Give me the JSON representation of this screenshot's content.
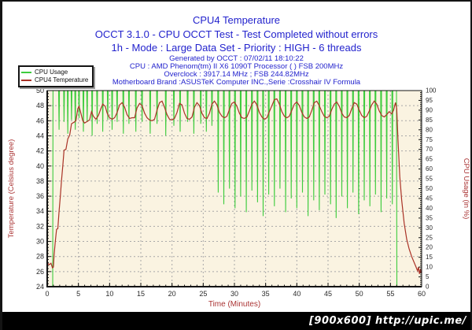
{
  "header": {
    "title_lines": [
      "CPU4 Temperature",
      "OCCT 3.1.0 - CPU OCCT Test - Test Completed without errors",
      "1h - Mode : Large Data Set - Priority : HIGH - 6 threads"
    ],
    "info_lines": [
      "Generated by OCCT : 07/02/11 18:10:22",
      "CPU : AMD Phenom(tm) II X6 1090T Processor (  ) FSB 200MHz",
      "Overclock : 3917.14 MHz ; FSB 244.82MHz",
      "Motherboard Brand :ASUSTeK Computer INC.,Serie :Crosshair IV Formula"
    ],
    "text_color": "#2323cd"
  },
  "watermark": {
    "text": "[900x600] http://upic.me/"
  },
  "chart_data": {
    "type": "line",
    "title": "CPU4 Temperature",
    "plot_bg": "#faf3e1",
    "grid": true,
    "grid_color": "#a8a8a8",
    "axis_label_color": "#aa3333",
    "tick_label_color": "#2a2a2a",
    "legend_position": "top-left",
    "x_axis": {
      "label": "Time (Minutes)",
      "lim": [
        0,
        60
      ],
      "ticks": [
        0,
        5,
        10,
        15,
        20,
        25,
        30,
        35,
        40,
        45,
        50,
        55,
        60
      ]
    },
    "y_left": {
      "label": "Temperature (Celsius degree)",
      "lim": [
        24,
        50
      ],
      "ticks": [
        24,
        26,
        28,
        30,
        32,
        34,
        36,
        38,
        40,
        42,
        44,
        46,
        48,
        50
      ]
    },
    "y_right": {
      "label": "CPU Usage (in %)",
      "lim": [
        0,
        100
      ],
      "ticks": [
        0,
        5,
        10,
        15,
        20,
        25,
        30,
        35,
        40,
        45,
        50,
        55,
        60,
        65,
        70,
        75,
        80,
        85,
        90,
        95,
        100
      ]
    },
    "series": [
      {
        "name": "CPU Usage",
        "axis": "right",
        "color": "#3ecc3e",
        "baseline": 100,
        "lead": [
          [
            0,
            0
          ],
          [
            0.88,
            0
          ],
          [
            0.93,
            100
          ]
        ],
        "dips": [
          [
            1.9,
            80
          ],
          [
            2.7,
            84
          ],
          [
            3.3,
            78
          ],
          [
            3.9,
            85
          ],
          [
            4.5,
            80
          ],
          [
            5.1,
            86
          ],
          [
            5.8,
            79
          ],
          [
            6.4,
            84
          ],
          [
            7.2,
            77
          ],
          [
            8.0,
            83
          ],
          [
            8.9,
            79
          ],
          [
            9.7,
            85
          ],
          [
            10.4,
            80
          ],
          [
            11.2,
            84
          ],
          [
            12.2,
            78
          ],
          [
            13.1,
            83
          ],
          [
            14.2,
            79
          ],
          [
            15.2,
            84
          ],
          [
            16.5,
            78
          ],
          [
            17.6,
            83
          ],
          [
            19.0,
            77
          ],
          [
            20.3,
            82
          ],
          [
            21.3,
            79
          ],
          [
            22.5,
            84
          ],
          [
            23.5,
            78
          ],
          [
            24.6,
            83
          ],
          [
            25.5,
            79
          ],
          [
            26.4,
            82
          ],
          [
            27.4,
            48
          ],
          [
            28.3,
            42
          ],
          [
            29.2,
            50
          ],
          [
            30.1,
            40
          ],
          [
            31.0,
            46
          ],
          [
            31.9,
            38
          ],
          [
            32.8,
            49
          ],
          [
            33.7,
            43
          ],
          [
            34.6,
            36
          ],
          [
            35.5,
            47
          ],
          [
            36.4,
            41
          ],
          [
            37.3,
            50
          ],
          [
            38.2,
            38
          ],
          [
            39.1,
            45
          ],
          [
            40.0,
            40
          ],
          [
            40.9,
            48
          ],
          [
            41.8,
            36
          ],
          [
            42.7,
            44
          ],
          [
            43.6,
            39
          ],
          [
            44.5,
            47
          ],
          [
            45.4,
            42
          ],
          [
            46.3,
            35
          ],
          [
            47.2,
            46
          ],
          [
            48.1,
            40
          ],
          [
            49.0,
            48
          ],
          [
            49.9,
            37
          ],
          [
            50.8,
            44
          ],
          [
            51.7,
            41
          ],
          [
            52.6,
            47
          ],
          [
            53.5,
            38
          ],
          [
            54.4,
            45
          ],
          [
            55.3,
            42
          ]
        ],
        "tail": [
          [
            55.97,
            100
          ],
          [
            56.03,
            0
          ],
          [
            60,
            0
          ]
        ]
      },
      {
        "name": "CPU4 Temperature",
        "axis": "left",
        "color": "#a93226",
        "points": [
          [
            0,
            27.2
          ],
          [
            0.3,
            26.9
          ],
          [
            0.6,
            27.1
          ],
          [
            0.85,
            26.5
          ],
          [
            1,
            26.6
          ],
          [
            1.1,
            28.1
          ],
          [
            1.3,
            30
          ],
          [
            1.5,
            31.6
          ],
          [
            1.7,
            31.7
          ],
          [
            1.9,
            34
          ],
          [
            2.1,
            36
          ],
          [
            2.3,
            38.1
          ],
          [
            2.5,
            40
          ],
          [
            2.7,
            42.1
          ],
          [
            3,
            42.2
          ],
          [
            3.3,
            43.6
          ],
          [
            3.6,
            44.1
          ],
          [
            3.9,
            45.6
          ],
          [
            4.3,
            45.8
          ],
          [
            4.6,
            46
          ],
          [
            4.9,
            47.6
          ],
          [
            5.1,
            47.9
          ],
          [
            5.4,
            47
          ],
          [
            5.7,
            46
          ],
          [
            6,
            45.7
          ],
          [
            6.4,
            45.9
          ],
          [
            6.8,
            46.1
          ],
          [
            7.1,
            47.2
          ],
          [
            7.4,
            46.6
          ],
          [
            7.8,
            46.2
          ],
          [
            8.2,
            46.7
          ],
          [
            8.6,
            47.6
          ],
          [
            8.9,
            48.2
          ],
          [
            9.3,
            47.9
          ],
          [
            9.6,
            47
          ],
          [
            10,
            46.4
          ],
          [
            10.4,
            46.2
          ],
          [
            10.8,
            46.4
          ],
          [
            11.2,
            47.1
          ],
          [
            11.6,
            48.1
          ],
          [
            12,
            48.4
          ],
          [
            12.4,
            47.8
          ],
          [
            12.8,
            46.8
          ],
          [
            13.2,
            46.3
          ],
          [
            13.6,
            46.4
          ],
          [
            14,
            46.4
          ],
          [
            14.4,
            47.7
          ],
          [
            14.8,
            48.3
          ],
          [
            15.2,
            48
          ],
          [
            15.6,
            47
          ],
          [
            16,
            46.4
          ],
          [
            16.4,
            46.1
          ],
          [
            16.8,
            46
          ],
          [
            17.2,
            46.2
          ],
          [
            17.6,
            47.4
          ],
          [
            18,
            48.4
          ],
          [
            18.4,
            48.6
          ],
          [
            18.8,
            47.8
          ],
          [
            19.2,
            46.8
          ],
          [
            19.6,
            46.2
          ],
          [
            20,
            46.1
          ],
          [
            20.4,
            46.3
          ],
          [
            20.8,
            47.1
          ],
          [
            21.2,
            48.3
          ],
          [
            21.6,
            48.1
          ],
          [
            22,
            47
          ],
          [
            22.4,
            46.3
          ],
          [
            22.8,
            46.2
          ],
          [
            23.2,
            46.5
          ],
          [
            23.6,
            47.8
          ],
          [
            24,
            48.4
          ],
          [
            24.4,
            48
          ],
          [
            24.8,
            47
          ],
          [
            25.2,
            46.4
          ],
          [
            25.6,
            46.3
          ],
          [
            26,
            47
          ],
          [
            26.4,
            48.2
          ],
          [
            26.8,
            48.6
          ],
          [
            27.2,
            48.1
          ],
          [
            27.6,
            47.1
          ],
          [
            28,
            46.6
          ],
          [
            28.4,
            46.4
          ],
          [
            28.8,
            46.6
          ],
          [
            29.2,
            47.5
          ],
          [
            29.6,
            48.3
          ],
          [
            30,
            48.5
          ],
          [
            30.4,
            47.9
          ],
          [
            30.8,
            47
          ],
          [
            31.2,
            46.4
          ],
          [
            31.6,
            46.3
          ],
          [
            32,
            46.5
          ],
          [
            32.4,
            47.3
          ],
          [
            32.8,
            48.2
          ],
          [
            33.2,
            48.6
          ],
          [
            33.6,
            48.1
          ],
          [
            34,
            47.1
          ],
          [
            34.4,
            46.5
          ],
          [
            34.8,
            46.2
          ],
          [
            35.2,
            46.4
          ],
          [
            35.6,
            47.2
          ],
          [
            36,
            48
          ],
          [
            36.4,
            48.8
          ],
          [
            36.8,
            48.9
          ],
          [
            37.2,
            48.2
          ],
          [
            37.6,
            47.2
          ],
          [
            38,
            46.6
          ],
          [
            38.4,
            46.4
          ],
          [
            38.8,
            46.6
          ],
          [
            39.2,
            47.4
          ],
          [
            39.6,
            48.2
          ],
          [
            40,
            48.5
          ],
          [
            40.4,
            48
          ],
          [
            40.8,
            47.1
          ],
          [
            41.2,
            46.5
          ],
          [
            41.6,
            46.3
          ],
          [
            42,
            46.5
          ],
          [
            42.4,
            47.4
          ],
          [
            42.8,
            48.4
          ],
          [
            43.2,
            48.6
          ],
          [
            43.6,
            48
          ],
          [
            44,
            47.2
          ],
          [
            44.4,
            46.6
          ],
          [
            44.8,
            46.4
          ],
          [
            45.2,
            46.6
          ],
          [
            45.6,
            47.5
          ],
          [
            46,
            48.2
          ],
          [
            46.4,
            48.5
          ],
          [
            46.8,
            47.9
          ],
          [
            47.2,
            47
          ],
          [
            47.6,
            46.5
          ],
          [
            48,
            46.4
          ],
          [
            48.4,
            46.7
          ],
          [
            48.8,
            47.6
          ],
          [
            49.2,
            48.4
          ],
          [
            49.6,
            48.2
          ],
          [
            50,
            47.4
          ],
          [
            50.4,
            46.7
          ],
          [
            50.8,
            46.4
          ],
          [
            51.2,
            46.6
          ],
          [
            51.6,
            47.3
          ],
          [
            52,
            48.1
          ],
          [
            52.4,
            48.6
          ],
          [
            52.8,
            48.2
          ],
          [
            53.2,
            47.3
          ],
          [
            53.6,
            46.7
          ],
          [
            54,
            46.5
          ],
          [
            54.4,
            46.8
          ],
          [
            54.8,
            47.2
          ],
          [
            55.2,
            46.9
          ],
          [
            55.5,
            47.4
          ],
          [
            55.8,
            48.4
          ],
          [
            56,
            47.6
          ],
          [
            56.2,
            43.5
          ],
          [
            56.5,
            38.6
          ],
          [
            56.8,
            35.5
          ],
          [
            57.2,
            32.4
          ],
          [
            57.6,
            30.3
          ],
          [
            58,
            29
          ],
          [
            58.4,
            28
          ],
          [
            58.8,
            27.2
          ],
          [
            59.1,
            26.6
          ],
          [
            59.35,
            26.1
          ],
          [
            59.5,
            26.6
          ],
          [
            59.65,
            25.7
          ],
          [
            59.8,
            26.3
          ],
          [
            59.9,
            25.8
          ],
          [
            60,
            26.2
          ]
        ]
      }
    ]
  }
}
